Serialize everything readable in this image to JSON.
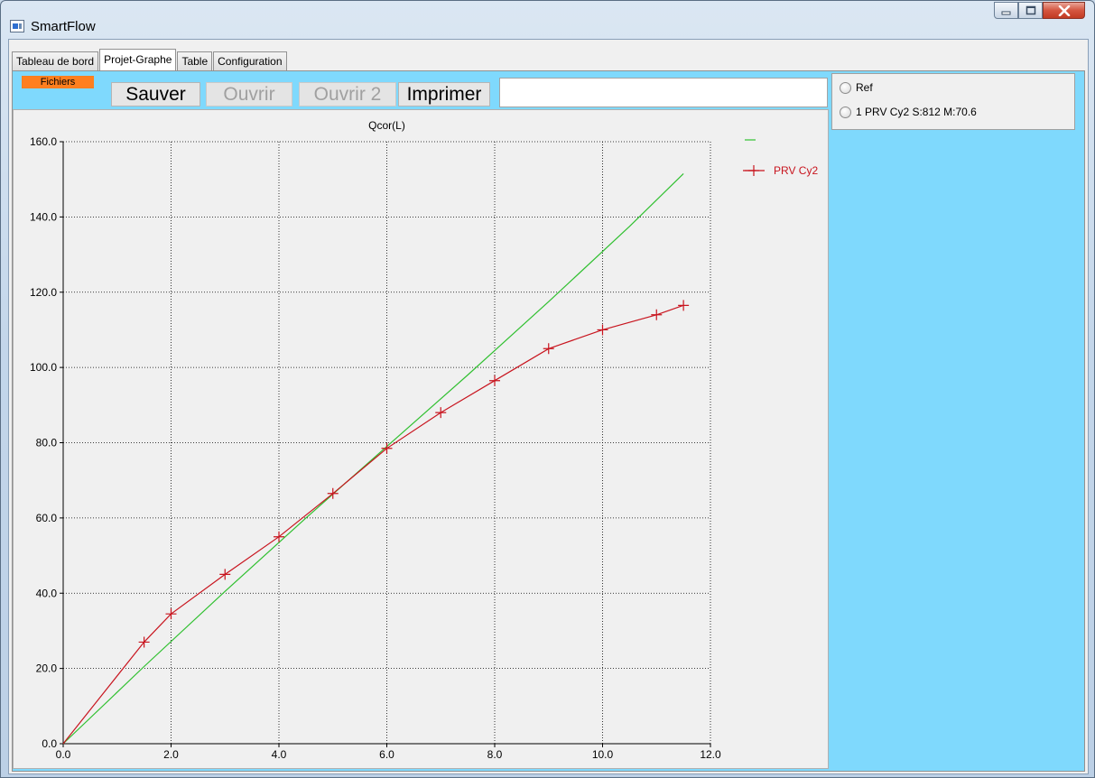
{
  "window": {
    "title": "SmartFlow"
  },
  "tabs": [
    {
      "label": "Tableau de bord",
      "active": false
    },
    {
      "label": "Projet-Graphe",
      "active": true
    },
    {
      "label": "Table",
      "active": false
    },
    {
      "label": "Configuration",
      "active": false
    }
  ],
  "toolbar": {
    "group_label": "Fichiers",
    "save": "Sauver",
    "open": "Ouvrir",
    "open2": "Ouvrir 2",
    "print": "Imprimer",
    "text_value": ""
  },
  "panel": {
    "options": [
      {
        "label": "Ref",
        "checked": false
      },
      {
        "label": "1 PRV Cy2 S:812 M:70.6",
        "checked": false
      }
    ]
  },
  "colors": {
    "tab_background": "#7fd9fd",
    "fichiers_badge": "#ff7f1e",
    "series_prv": "#c8141e",
    "series_ref": "#30c030"
  },
  "chart_data": {
    "type": "line",
    "title": "Qcor(L)",
    "xlim": [
      0,
      12
    ],
    "ylim": [
      0,
      160
    ],
    "x_ticks": [
      "0.0",
      "2.0",
      "4.0",
      "6.0",
      "8.0",
      "10.0",
      "12.0"
    ],
    "y_ticks": [
      "0.0",
      "20.0",
      "40.0",
      "60.0",
      "80.0",
      "100.0",
      "120.0",
      "140.0",
      "160.0"
    ],
    "grid": true,
    "legend_position": "top-right",
    "series": [
      {
        "name": "",
        "color": "#30c030",
        "marker": "none",
        "x": [
          0,
          1.5,
          3,
          4.5,
          6,
          7.5,
          9,
          10.5,
          11.5
        ],
        "y": [
          0,
          20.5,
          40.5,
          60.0,
          79.0,
          98.0,
          117.5,
          137.5,
          151.5
        ]
      },
      {
        "name": "PRV Cy2",
        "color": "#c8141e",
        "marker": "plus",
        "x": [
          0,
          1.5,
          2,
          3,
          4,
          5,
          6,
          7,
          8,
          9,
          10,
          11,
          11.5
        ],
        "y": [
          0,
          27.0,
          34.5,
          45.0,
          55.0,
          66.5,
          78.5,
          88.0,
          96.5,
          105.0,
          110.0,
          114.0,
          116.5
        ]
      }
    ]
  }
}
